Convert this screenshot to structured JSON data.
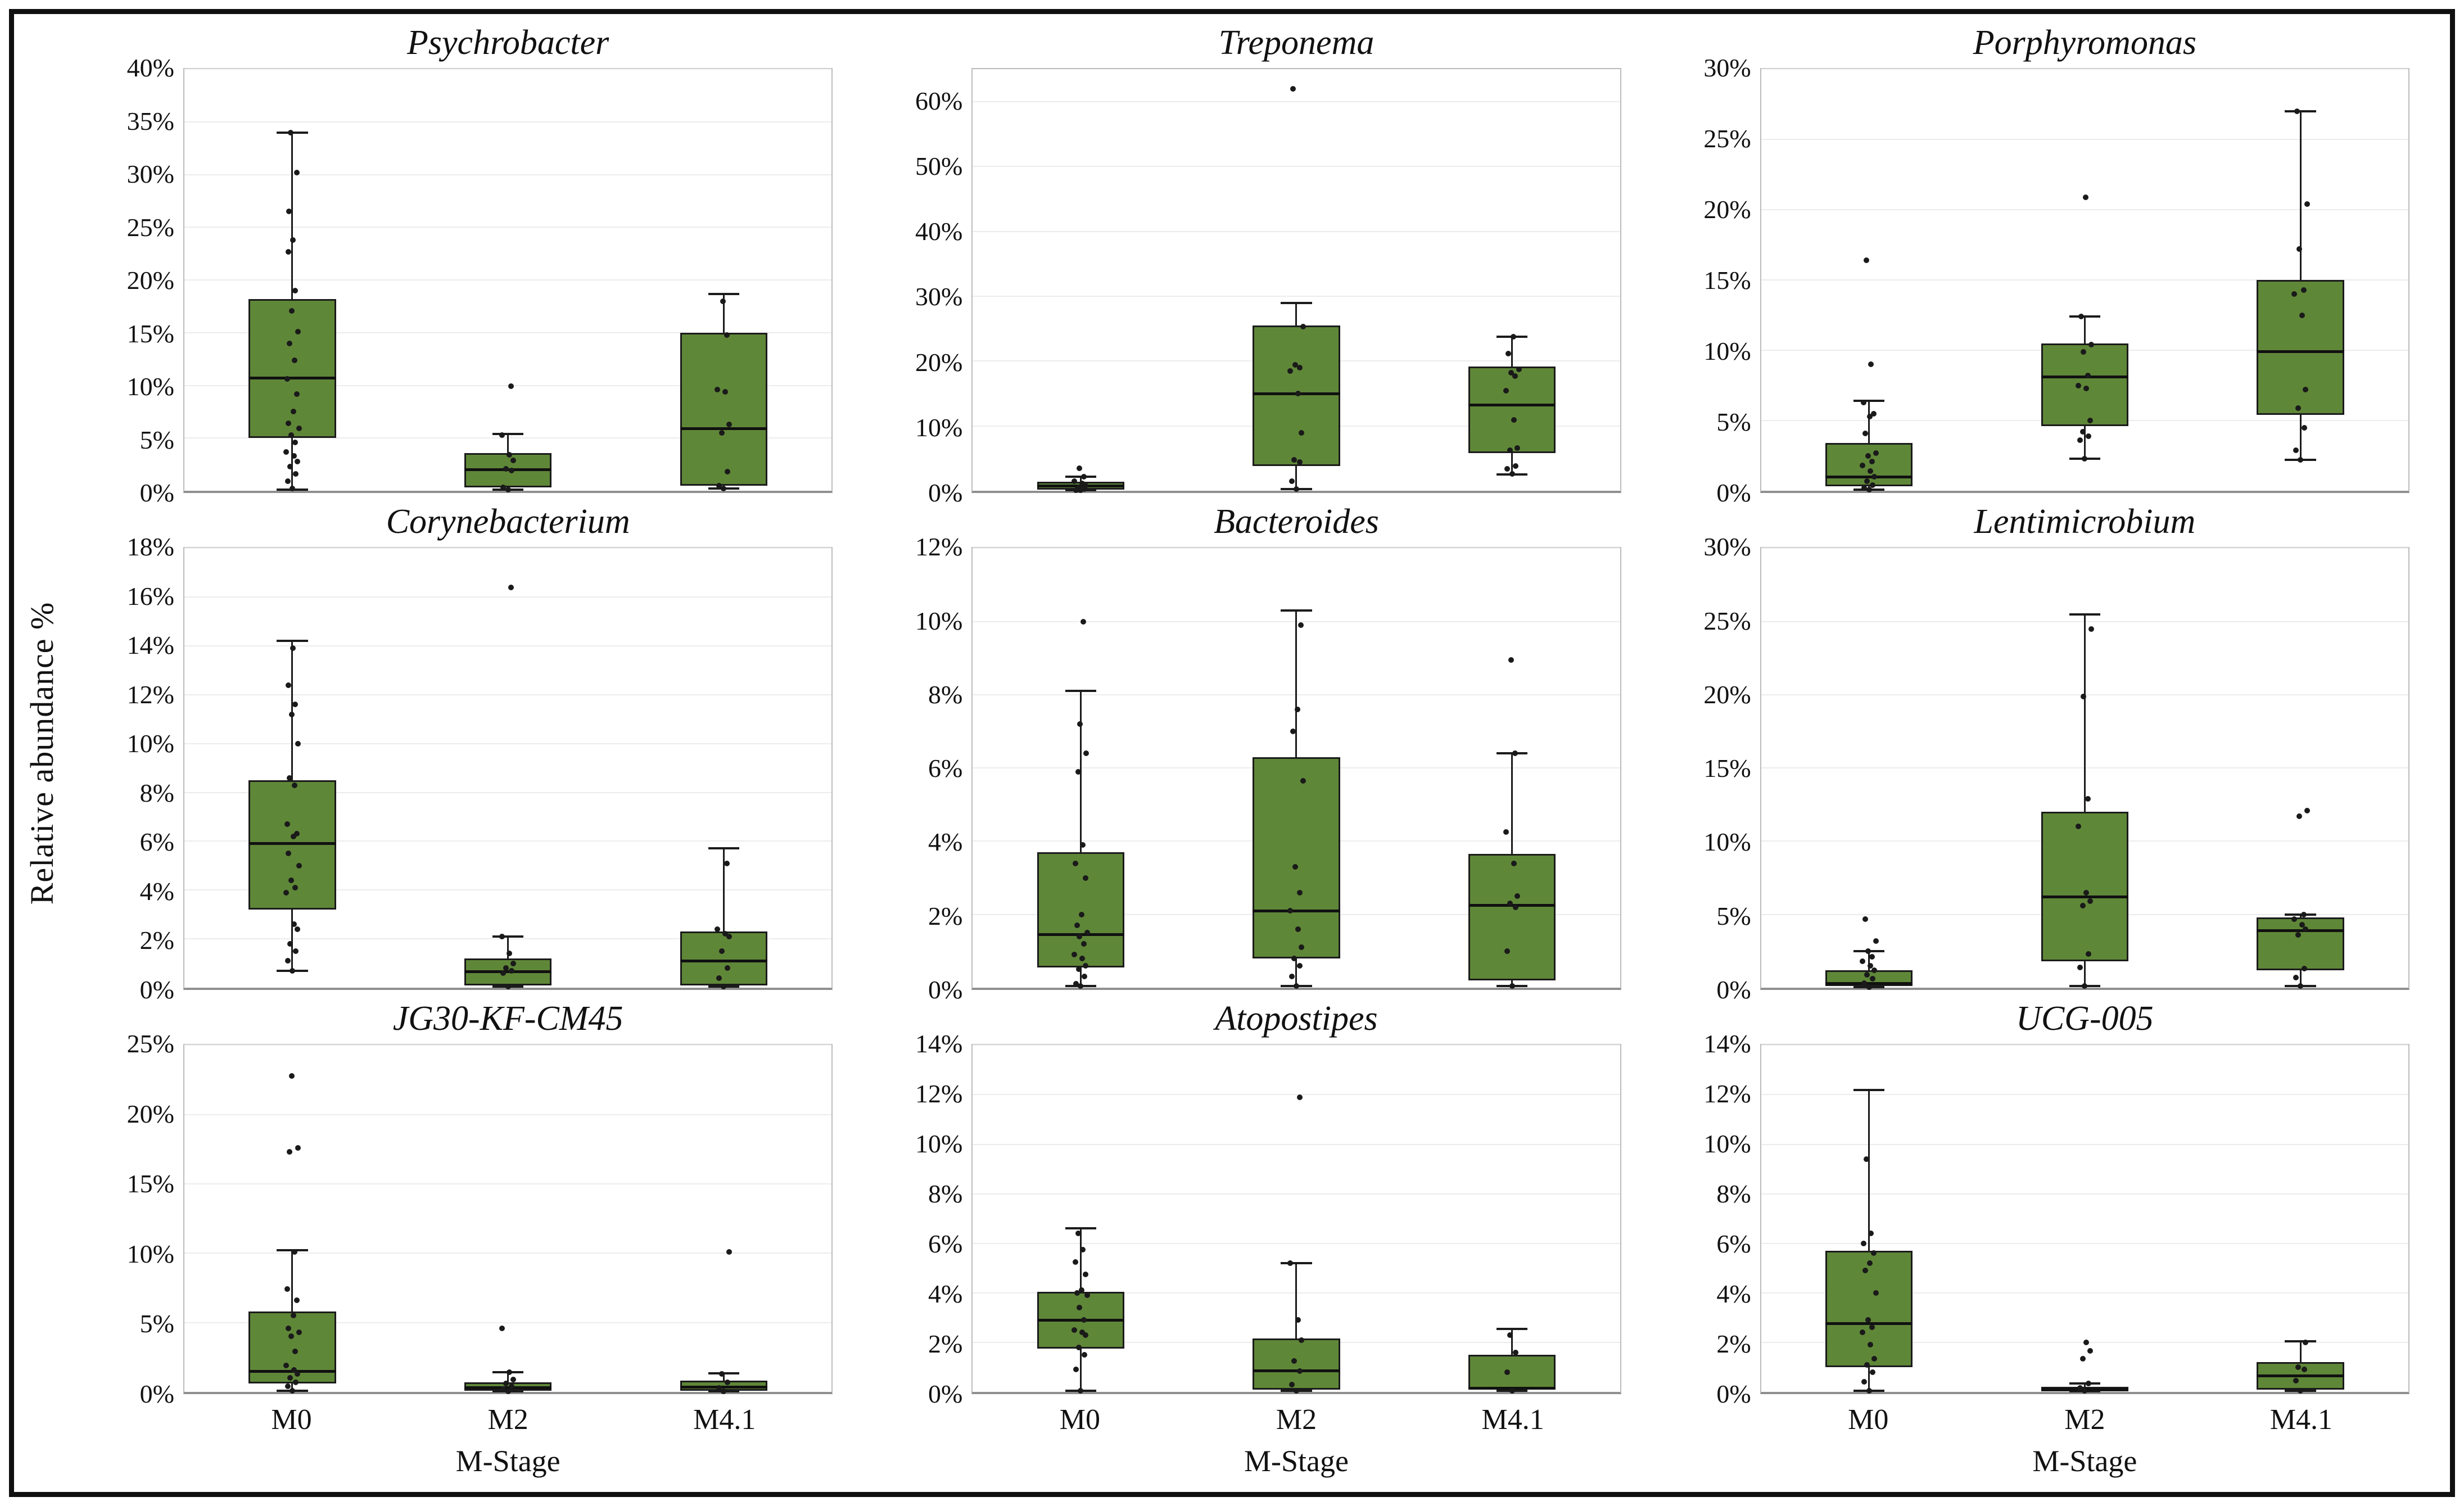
{
  "figure": {
    "ylabel": "Relative abundance %",
    "xlabel": "M-Stage",
    "categories": [
      "M0",
      "M2",
      "M4.1"
    ],
    "tick_suffix": "%",
    "legend": "none",
    "grid": "horizontal-light",
    "colors": {
      "box_fill": "#5f8738",
      "box_stroke": "#1b1b1b",
      "median": "#111111",
      "point": "#1a1a1a",
      "grid": "#ececec",
      "panel_border": "#bcbcbc",
      "axis_line": "#8f8f8f",
      "outer_border": "#101010",
      "text": "#111111"
    }
  },
  "chart_data": [
    {
      "type": "box",
      "title": "Psychrobacter",
      "ylabel": "Relative abundance %",
      "ylim": [
        0,
        40
      ],
      "ymax": 40,
      "tick_max": 40,
      "tick_step": 5,
      "groups": [
        {
          "category": "M0",
          "whisker_low": 0.1,
          "q1": 5.0,
          "median": 10.7,
          "q3": 18.2,
          "whisker_high": 34.0,
          "points": [
            0.2,
            0.9,
            1.6,
            2.3,
            2.8,
            3.3,
            3.7,
            4.6,
            5.3,
            5.9,
            6.4,
            7.5,
            9.2,
            10.6,
            12.4,
            14.0,
            15.1,
            17.1,
            19.0,
            22.7,
            23.8,
            26.5,
            30.2,
            34.0
          ]
        },
        {
          "category": "M2",
          "whisker_low": 0.1,
          "q1": 0.3,
          "median": 2.0,
          "q3": 3.6,
          "whisker_high": 5.4,
          "points": [
            0.1,
            0.3,
            1.9,
            2.1,
            2.9,
            3.4,
            5.3,
            9.9
          ]
        },
        {
          "category": "M4.1",
          "whisker_low": 0.2,
          "q1": 0.5,
          "median": 5.9,
          "q3": 15.0,
          "whisker_high": 18.7,
          "points": [
            0.2,
            0.5,
            1.8,
            5.5,
            6.3,
            9.4,
            9.6,
            14.8,
            18.0
          ]
        }
      ]
    },
    {
      "type": "box",
      "title": "Treponema",
      "ylim": [
        0,
        65
      ],
      "ymax": 65,
      "tick_max": 60,
      "tick_step": 10,
      "groups": [
        {
          "category": "M0",
          "whisker_low": 0.05,
          "q1": 0.2,
          "median": 0.7,
          "q3": 1.4,
          "whisker_high": 2.2,
          "points": [
            0.05,
            0.1,
            0.3,
            0.5,
            0.8,
            1.1,
            1.5,
            2.2,
            3.5
          ]
        },
        {
          "category": "M2",
          "whisker_low": 0.3,
          "q1": 3.8,
          "median": 15.0,
          "q3": 25.5,
          "whisker_high": 29.0,
          "points": [
            0.3,
            1.5,
            4.4,
            4.8,
            8.9,
            15.0,
            18.5,
            19.0,
            19.4,
            25.3,
            62.0
          ]
        },
        {
          "category": "M4.1",
          "whisker_low": 2.5,
          "q1": 5.8,
          "median": 13.2,
          "q3": 19.2,
          "whisker_high": 23.8,
          "points": [
            2.6,
            3.4,
            3.8,
            6.2,
            6.6,
            10.9,
            15.4,
            17.7,
            18.2,
            18.7,
            21.2,
            23.8
          ]
        }
      ]
    },
    {
      "type": "box",
      "title": "Porphyromonas",
      "ylim": [
        0,
        30
      ],
      "ymax": 30,
      "tick_max": 30,
      "tick_step": 5,
      "groups": [
        {
          "category": "M0",
          "whisker_low": 0.1,
          "q1": 0.3,
          "median": 1.0,
          "q3": 3.4,
          "whisker_high": 6.4,
          "points": [
            0.1,
            0.2,
            0.4,
            0.7,
            1.0,
            1.4,
            1.8,
            2.1,
            2.5,
            2.7,
            4.1,
            5.3,
            5.5,
            6.3,
            9.0,
            16.4
          ]
        },
        {
          "category": "M2",
          "whisker_low": 2.3,
          "q1": 4.6,
          "median": 8.1,
          "q3": 10.5,
          "whisker_high": 12.4,
          "points": [
            2.3,
            3.6,
            3.9,
            4.2,
            5.0,
            7.3,
            7.5,
            8.2,
            9.9,
            10.4,
            12.4,
            20.9
          ]
        },
        {
          "category": "M4.1",
          "whisker_low": 2.2,
          "q1": 5.4,
          "median": 9.9,
          "q3": 15.0,
          "whisker_high": 27.0,
          "points": [
            2.2,
            2.9,
            4.5,
            5.9,
            7.2,
            12.5,
            14.0,
            14.3,
            17.2,
            20.4,
            27.0
          ]
        }
      ]
    },
    {
      "type": "box",
      "title": "Corynebacterium",
      "ylim": [
        0,
        18
      ],
      "ymax": 18,
      "tick_max": 18,
      "tick_step": 2,
      "groups": [
        {
          "category": "M0",
          "whisker_low": 0.7,
          "q1": 3.2,
          "median": 5.9,
          "q3": 8.5,
          "whisker_high": 14.2,
          "points": [
            0.7,
            1.1,
            1.5,
            1.8,
            2.4,
            2.6,
            3.9,
            4.1,
            4.4,
            5.0,
            5.5,
            6.2,
            6.3,
            6.7,
            8.3,
            8.6,
            10.0,
            11.2,
            11.6,
            12.4,
            13.9
          ]
        },
        {
          "category": "M2",
          "whisker_low": 0.05,
          "q1": 0.1,
          "median": 0.65,
          "q3": 1.2,
          "whisker_high": 2.1,
          "points": [
            0.05,
            0.6,
            0.7,
            0.8,
            1.0,
            1.4,
            2.1,
            16.4
          ]
        },
        {
          "category": "M4.1",
          "whisker_low": 0.05,
          "q1": 0.1,
          "median": 1.1,
          "q3": 2.3,
          "whisker_high": 5.7,
          "points": [
            0.05,
            0.4,
            0.8,
            1.5,
            2.1,
            2.2,
            2.4,
            5.1
          ]
        }
      ]
    },
    {
      "type": "box",
      "title": "Bacteroides",
      "ylim": [
        0,
        12
      ],
      "ymax": 12,
      "tick_max": 12,
      "tick_step": 2,
      "groups": [
        {
          "category": "M0",
          "whisker_low": 0.05,
          "q1": 0.55,
          "median": 1.45,
          "q3": 3.7,
          "whisker_high": 8.1,
          "points": [
            0.05,
            0.1,
            0.3,
            0.5,
            0.6,
            0.8,
            0.9,
            1.2,
            1.4,
            1.5,
            1.7,
            2.0,
            3.0,
            3.4,
            3.9,
            5.9,
            6.4,
            7.2,
            10.0
          ]
        },
        {
          "category": "M2",
          "whisker_low": 0.05,
          "q1": 0.8,
          "median": 2.1,
          "q3": 6.3,
          "whisker_high": 10.3,
          "points": [
            0.05,
            0.3,
            0.6,
            0.8,
            1.1,
            1.6,
            2.1,
            2.6,
            3.3,
            5.65,
            7.0,
            7.6,
            9.9
          ]
        },
        {
          "category": "M4.1",
          "whisker_low": 0.05,
          "q1": 0.2,
          "median": 2.25,
          "q3": 3.65,
          "whisker_high": 6.4,
          "points": [
            0.05,
            1.0,
            2.2,
            2.3,
            2.5,
            3.4,
            4.25,
            6.4,
            8.95
          ]
        }
      ]
    },
    {
      "type": "box",
      "title": "Lentimicrobium",
      "ylim": [
        0,
        30
      ],
      "ymax": 30,
      "tick_max": 30,
      "tick_step": 5,
      "groups": [
        {
          "category": "M0",
          "whisker_low": 0.05,
          "q1": 0.1,
          "median": 0.3,
          "q3": 1.2,
          "whisker_high": 2.5,
          "points": [
            0.05,
            0.3,
            0.6,
            0.9,
            1.2,
            1.5,
            1.8,
            2.1,
            2.5,
            3.2,
            4.7
          ]
        },
        {
          "category": "M2",
          "whisker_low": 0.1,
          "q1": 1.8,
          "median": 6.2,
          "q3": 12.0,
          "whisker_high": 25.5,
          "points": [
            0.1,
            1.4,
            2.3,
            5.6,
            5.9,
            6.5,
            11.0,
            12.9,
            19.9,
            24.5
          ]
        },
        {
          "category": "M4.1",
          "whisker_low": 0.1,
          "q1": 1.2,
          "median": 3.9,
          "q3": 4.8,
          "whisker_high": 5.0,
          "points": [
            0.1,
            0.7,
            1.3,
            3.6,
            4.0,
            4.3,
            4.7,
            5.0,
            11.7,
            12.1
          ]
        }
      ]
    },
    {
      "type": "box",
      "title": "JG30-KF-CM45",
      "ylim": [
        0,
        25
      ],
      "ymax": 25,
      "tick_max": 25,
      "tick_step": 5,
      "groups": [
        {
          "category": "M0",
          "whisker_low": 0.1,
          "q1": 0.6,
          "median": 1.5,
          "q3": 5.8,
          "whisker_high": 10.2,
          "points": [
            0.1,
            0.4,
            0.7,
            1.0,
            1.3,
            1.6,
            1.9,
            2.9,
            4.0,
            4.3,
            4.6,
            5.5,
            6.6,
            7.4,
            10.1,
            17.3,
            17.6,
            22.8
          ]
        },
        {
          "category": "M2",
          "whisker_low": 0.05,
          "q1": 0.1,
          "median": 0.3,
          "q3": 0.7,
          "whisker_high": 1.4,
          "points": [
            0.05,
            0.2,
            0.4,
            0.6,
            0.9,
            1.4,
            4.6
          ]
        },
        {
          "category": "M4.1",
          "whisker_low": 0.05,
          "q1": 0.1,
          "median": 0.35,
          "q3": 0.8,
          "whisker_high": 1.35,
          "points": [
            0.05,
            0.3,
            0.7,
            1.3,
            10.1
          ]
        }
      ]
    },
    {
      "type": "box",
      "title": "Atopostipes",
      "ylim": [
        0,
        14
      ],
      "ymax": 14,
      "tick_max": 14,
      "tick_step": 2,
      "groups": [
        {
          "category": "M0",
          "whisker_low": 0.05,
          "q1": 1.75,
          "median": 2.9,
          "q3": 4.05,
          "whisker_high": 6.6,
          "points": [
            0.05,
            0.9,
            1.5,
            1.8,
            2.3,
            2.4,
            2.5,
            2.9,
            3.4,
            3.9,
            4.0,
            4.1,
            4.75,
            5.25,
            5.75,
            6.4
          ]
        },
        {
          "category": "M2",
          "whisker_low": 0.05,
          "q1": 0.1,
          "median": 0.85,
          "q3": 2.15,
          "whisker_high": 5.2,
          "points": [
            0.05,
            0.3,
            0.85,
            1.25,
            2.1,
            2.9,
            5.2,
            11.9
          ]
        },
        {
          "category": "M4.1",
          "whisker_low": 0.05,
          "q1": 0.1,
          "median": 0.15,
          "q3": 1.5,
          "whisker_high": 2.55,
          "points": [
            0.05,
            0.8,
            1.6,
            2.3
          ]
        }
      ]
    },
    {
      "type": "box",
      "title": "UCG-005",
      "ylim": [
        0,
        14
      ],
      "ymax": 14,
      "tick_max": 14,
      "tick_step": 2,
      "groups": [
        {
          "category": "M0",
          "whisker_low": 0.05,
          "q1": 1.0,
          "median": 2.75,
          "q3": 5.7,
          "whisker_high": 12.2,
          "points": [
            0.05,
            0.4,
            0.8,
            1.1,
            1.35,
            1.9,
            2.4,
            2.6,
            2.9,
            4.0,
            4.9,
            5.2,
            5.6,
            6.0,
            6.4,
            9.4
          ]
        },
        {
          "category": "M2",
          "whisker_low": 0.02,
          "q1": 0.03,
          "median": 0.1,
          "q3": 0.2,
          "whisker_high": 0.35,
          "points": [
            0.05,
            0.15,
            0.35,
            1.35,
            1.65,
            2.0
          ]
        },
        {
          "category": "M4.1",
          "whisker_low": 0.05,
          "q1": 0.1,
          "median": 0.65,
          "q3": 1.2,
          "whisker_high": 2.05,
          "points": [
            0.05,
            0.45,
            0.9,
            1.0,
            2.0
          ]
        }
      ]
    }
  ]
}
